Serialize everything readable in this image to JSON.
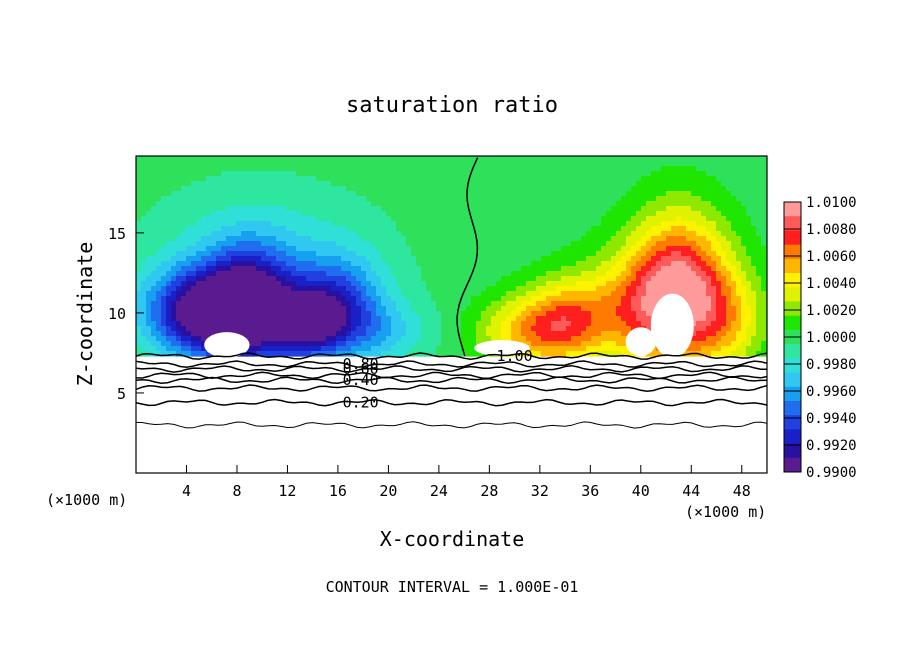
{
  "chart_data": {
    "type": "heatmap",
    "title": "saturation ratio",
    "xlabel": "X-coordinate",
    "ylabel": "Z-coordinate",
    "x_unit_left": "(×1000 m)",
    "x_unit_right": "(×1000 m)",
    "xlim": [
      0,
      50
    ],
    "ylim": [
      0,
      19.8
    ],
    "x_ticks": [
      4,
      8,
      12,
      16,
      20,
      24,
      28,
      32,
      36,
      40,
      44,
      48
    ],
    "y_ticks": [
      5,
      10,
      15
    ],
    "footer": "CONTOUR INTERVAL = 1.000E-01",
    "colorbar": {
      "levels": [
        "1.0100",
        "1.0080",
        "1.0060",
        "1.0040",
        "1.0020",
        "1.0000",
        "0.9980",
        "0.9960",
        "0.9940",
        "0.9920",
        "0.9900"
      ],
      "colors": [
        "#ff9a9a",
        "#ff5a5a",
        "#ff1f1f",
        "#ff7a00",
        "#ffb600",
        "#fff200",
        "#dff200",
        "#8ee800",
        "#1fe600",
        "#2fe05a",
        "#2ee6a0",
        "#30e0d8",
        "#30c8f0",
        "#18a0f0",
        "#1f6ef0",
        "#2040e0",
        "#1a20c8",
        "#2a10a0",
        "#5a1a90"
      ]
    },
    "sat_level": 7.3,
    "contour_lines": [
      {
        "label": "1.00",
        "z": 7.3,
        "label_x": 30.0
      },
      {
        "label": "0.80",
        "z": 6.8,
        "label_x": 17.8
      },
      {
        "label": "0.60",
        "z": 6.5,
        "label_x": 17.8
      },
      {
        "label": "0.40",
        "z": 5.8,
        "label_x": 17.8
      },
      {
        "label": "0.20",
        "z": 4.4,
        "label_x": 17.8
      },
      {
        "label": "",
        "z": 6.1,
        "label_x": null
      },
      {
        "label": "",
        "z": 5.3,
        "label_x": null
      },
      {
        "label": "",
        "z": 3.0,
        "label_x": null
      }
    ],
    "features": [
      {
        "kind": "blob",
        "x": 5.5,
        "z": 10.0,
        "sx": 4.5,
        "sz": 2.6,
        "v": -1.0
      },
      {
        "kind": "blob",
        "x": 9.0,
        "z": 10.4,
        "sx": 3.5,
        "sz": 3.6,
        "v": -0.8
      },
      {
        "kind": "blob",
        "x": 13.5,
        "z": 9.3,
        "sx": 2.8,
        "sz": 2.0,
        "v": -0.7
      },
      {
        "kind": "blob",
        "x": 16.0,
        "z": 10.5,
        "sx": 3.5,
        "sz": 3.0,
        "v": -0.55
      },
      {
        "kind": "blob",
        "x": 10.0,
        "z": 12.5,
        "sx": 9.0,
        "sz": 5.0,
        "v": -0.28
      },
      {
        "kind": "blob",
        "x": 19.5,
        "z": 8.8,
        "sx": 4.0,
        "sz": 2.0,
        "v": -0.25
      },
      {
        "kind": "blob",
        "x": 43.0,
        "z": 11.5,
        "sx": 4.0,
        "sz": 4.5,
        "v": 1.0
      },
      {
        "kind": "blob",
        "x": 38.0,
        "z": 10.0,
        "sx": 5.0,
        "sz": 3.2,
        "v": 0.45
      },
      {
        "kind": "blob",
        "x": 31.0,
        "z": 8.8,
        "sx": 4.0,
        "sz": 2.2,
        "v": 0.5
      },
      {
        "kind": "blob",
        "x": 34.0,
        "z": 9.5,
        "sx": 3.0,
        "sz": 2.4,
        "v": 0.35
      },
      {
        "kind": "blob",
        "x": 47.0,
        "z": 9.5,
        "sx": 3.0,
        "sz": 3.0,
        "v": 0.35
      }
    ]
  }
}
